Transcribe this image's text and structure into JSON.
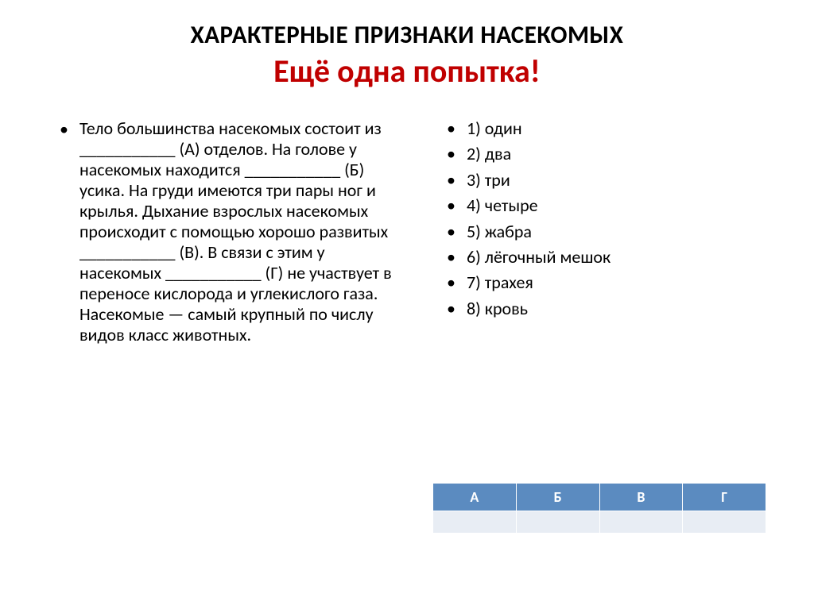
{
  "title": {
    "line1": "ХАРАКТЕРНЫЕ ПРИЗНАКИ НАСЕКОМЫХ",
    "line2": "Ещё одна попытка!"
  },
  "leftText": "Тело большинства насекомых состоит из ___________ (А) отделов. На голове у насекомых находится ___________ (Б) усика. На груди имеются три пары ног и крылья. Дыхание взрослых насекомых происходит с помощью хорошо развитых ___________ (В). В связи с этим у насекомых ___________ (Г) не участвует в переносе кислорода и углекислого газа. Насекомые —  самый крупный по числу видов класс животных.",
  "options": [
    "1) один",
    "2) два",
    "3) три",
    "4) четыре",
    "5) жабра",
    "6) лёгочный мешок",
    "7) трахея",
    "8) кровь"
  ],
  "table": {
    "headers": [
      "А",
      "Б",
      "В",
      "Г"
    ],
    "headerBg": "#5b8bc0",
    "headerColor": "#ffffff",
    "rowBg": "#e8edf4"
  }
}
